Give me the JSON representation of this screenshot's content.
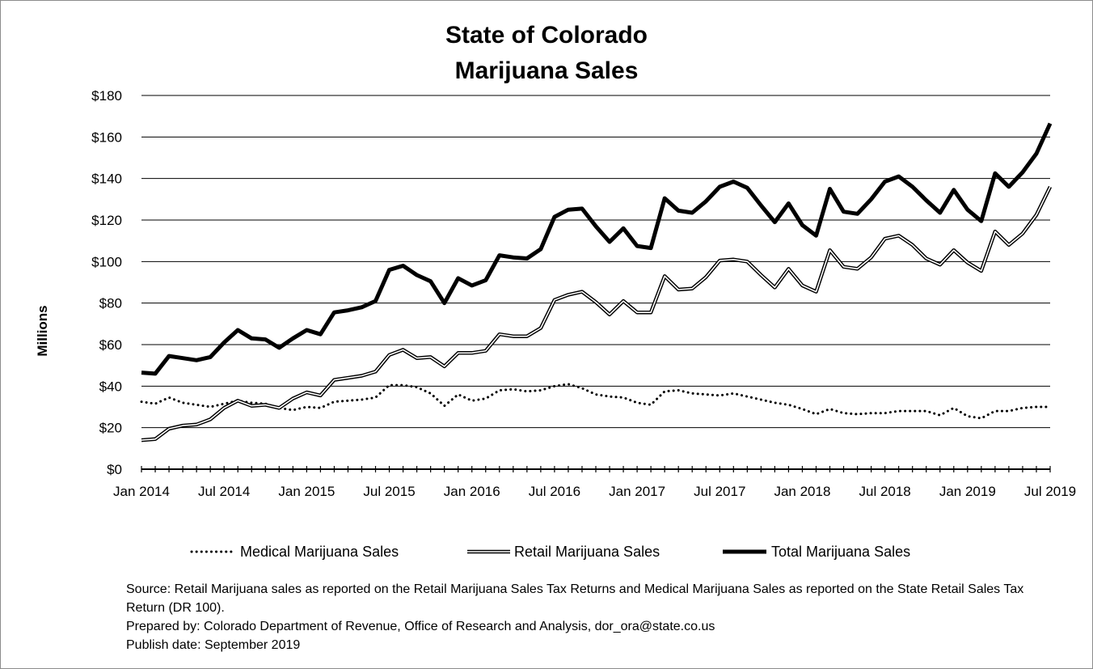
{
  "chart_data": {
    "type": "line",
    "title": [
      "State of Colorado",
      "Marijuana Sales"
    ],
    "ylabel": "Millions",
    "xlabel": "",
    "ylim": [
      0,
      180
    ],
    "y_ticks": [
      "$0",
      "$20",
      "$40",
      "$60",
      "$80",
      "$100",
      "$120",
      "$140",
      "$160",
      "$180"
    ],
    "grid": "horizontal",
    "legend_position": "bottom",
    "x_start": "Jan 2014",
    "x_end": "Jul 2019",
    "x_tick_labels": [
      "Jan 2014",
      "Jul 2014",
      "Jan 2015",
      "Jul 2015",
      "Jan 2016",
      "Jul 2016",
      "Jan 2017",
      "Jul 2017",
      "Jan 2018",
      "Jul 2018",
      "Jan 2019",
      "Jul 2019"
    ],
    "series": [
      {
        "name": "Medical Marijuana Sales",
        "style": "dotted",
        "color": "#000000",
        "values": [
          32.5,
          31.5,
          34.5,
          32.0,
          31.0,
          30.0,
          31.5,
          33.0,
          32.0,
          31.5,
          29.5,
          28.5,
          30.0,
          29.5,
          32.5,
          33.0,
          33.5,
          34.5,
          40.5,
          40.5,
          39.5,
          36.5,
          30.5,
          36.0,
          33.0,
          34.0,
          38.0,
          38.5,
          37.5,
          38.0,
          40.0,
          41.0,
          39.0,
          36.0,
          35.0,
          34.5,
          32.0,
          31.0,
          37.5,
          38.0,
          36.5,
          36.0,
          35.5,
          36.5,
          35.0,
          33.5,
          32.0,
          31.0,
          29.0,
          26.5,
          29.0,
          27.0,
          26.5,
          27.0,
          27.0,
          28.0,
          28.0,
          28.0,
          26.0,
          29.5,
          25.5,
          24.5,
          28.0,
          28.0,
          29.5,
          30.0,
          30.0
        ]
      },
      {
        "name": "Retail Marijuana Sales",
        "style": "double",
        "color": "#000000",
        "values": [
          14.0,
          14.5,
          19.5,
          21.0,
          21.5,
          24.0,
          29.5,
          33.0,
          30.5,
          31.0,
          29.5,
          34.0,
          37.0,
          35.5,
          43.0,
          44.0,
          45.0,
          47.0,
          55.0,
          57.5,
          53.5,
          54.0,
          49.5,
          56.0,
          56.0,
          57.0,
          65.0,
          64.0,
          64.0,
          68.0,
          81.5,
          84.0,
          85.5,
          80.5,
          74.5,
          81.0,
          75.5,
          75.5,
          93.0,
          86.5,
          87.0,
          92.5,
          100.5,
          101.0,
          100.0,
          93.5,
          87.5,
          96.5,
          88.5,
          85.5,
          105.5,
          97.5,
          96.5,
          102.0,
          111.0,
          112.5,
          108.0,
          101.5,
          98.5,
          105.5,
          99.5,
          95.5,
          114.5,
          108.0,
          113.5,
          122.5,
          136.0
        ]
      },
      {
        "name": "Total Marijuana Sales",
        "style": "thick",
        "color": "#000000",
        "values": [
          46.5,
          46.0,
          54.5,
          53.5,
          52.5,
          54.0,
          61.0,
          67.0,
          63.0,
          62.5,
          58.5,
          63.0,
          67.0,
          65.0,
          75.5,
          76.5,
          78.0,
          81.0,
          96.0,
          98.0,
          93.5,
          90.5,
          80.0,
          92.0,
          88.5,
          91.0,
          103.0,
          102.0,
          101.5,
          106.0,
          121.5,
          125.0,
          125.5,
          117.0,
          109.5,
          116.0,
          107.5,
          106.5,
          130.5,
          124.5,
          123.5,
          129.0,
          136.0,
          138.5,
          135.5,
          127.0,
          119.0,
          128.0,
          117.5,
          112.5,
          135.0,
          124.0,
          123.0,
          130.0,
          138.5,
          141.0,
          136.0,
          129.5,
          123.5,
          134.5,
          125.0,
          119.5,
          142.5,
          136.0,
          143.0,
          152.0,
          166.5
        ]
      }
    ]
  },
  "notes": {
    "source": "Source: Retail  Marijuana sales as reported on the Retail Marijuana Sales Tax Returns and Medical Marijuana Sales as reported on the State Retail Sales Tax Return (DR 100).",
    "prepared_by": "Prepared by: Colorado Department of Revenue, Office of Research and Analysis, dor_ora@state.co.us",
    "publish_date": "Publish date: September 2019"
  }
}
